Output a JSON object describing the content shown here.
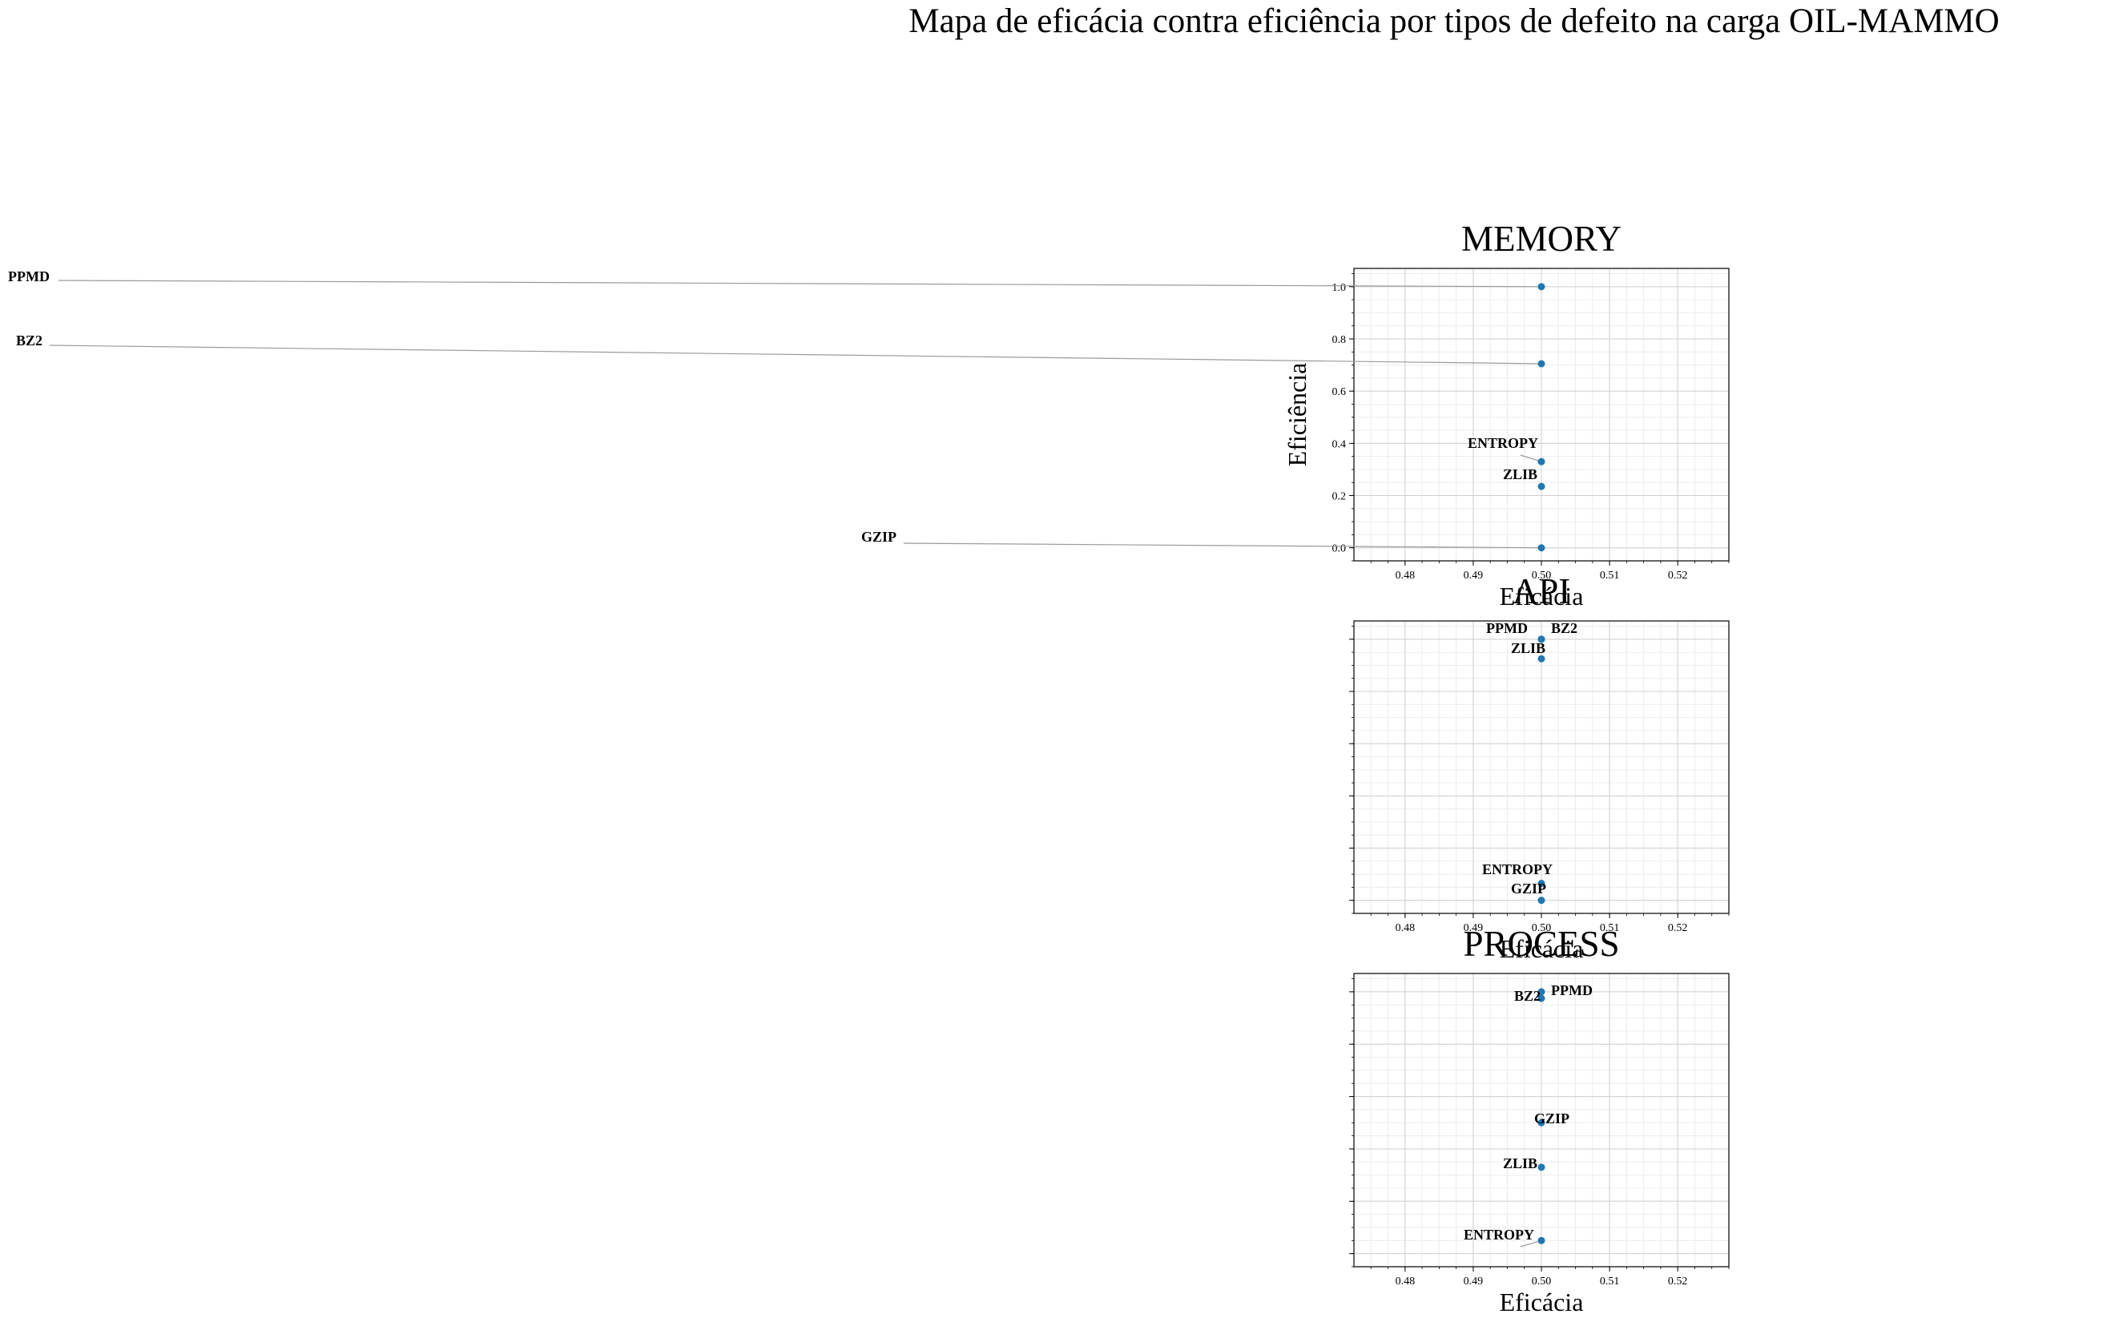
{
  "title": "Mapa de eficácia contra eficiência por tipos de defeito na carga OIL-MAMMO",
  "chart_data": [
    {
      "type": "scatter",
      "title": "MEMORY",
      "xlabel": "Eficácia",
      "ylabel": "Eficiência",
      "xlim": [
        0.4725,
        0.5275
      ],
      "ylim": [
        -0.05,
        1.07
      ],
      "xticks": [
        "0.48",
        "0.49",
        "0.50",
        "0.51",
        "0.52"
      ],
      "yticks": [
        "0.0",
        "0.2",
        "0.4",
        "0.6",
        "0.8",
        "1.0"
      ],
      "grid": true,
      "points": [
        {
          "label": "PPMD",
          "x": 0.5,
          "y": 1.0
        },
        {
          "label": "BZ2",
          "x": 0.5,
          "y": 0.705
        },
        {
          "label": "ENTROPY",
          "x": 0.5,
          "y": 0.33
        },
        {
          "label": "ZLIB",
          "x": 0.5,
          "y": 0.235
        },
        {
          "label": "GZIP",
          "x": 0.5,
          "y": 0.0
        }
      ]
    },
    {
      "type": "scatter",
      "title": "API",
      "xlabel": "Eficácia",
      "ylabel": "",
      "xlim": [
        0.4725,
        0.5275
      ],
      "ylim": [
        -0.05,
        1.07
      ],
      "xticks": [
        "0.48",
        "0.49",
        "0.50",
        "0.51",
        "0.52"
      ],
      "yticks": [],
      "grid": true,
      "points": [
        {
          "label": "PPMD",
          "x": 0.5,
          "y": 1.0
        },
        {
          "label": "BZ2",
          "x": 0.5,
          "y": 1.0
        },
        {
          "label": "ZLIB",
          "x": 0.5,
          "y": 0.925
        },
        {
          "label": "ENTROPY",
          "x": 0.5,
          "y": 0.065
        },
        {
          "label": "GZIP",
          "x": 0.5,
          "y": 0.0
        }
      ]
    },
    {
      "type": "scatter",
      "title": "PROCESS",
      "xlabel": "Eficácia",
      "ylabel": "",
      "xlim": [
        0.4725,
        0.5275
      ],
      "ylim": [
        -0.05,
        1.07
      ],
      "xticks": [
        "0.48",
        "0.49",
        "0.50",
        "0.51",
        "0.52"
      ],
      "yticks": [],
      "grid": true,
      "points": [
        {
          "label": "PPMD",
          "x": 0.5,
          "y": 1.0
        },
        {
          "label": "BZ2",
          "x": 0.5,
          "y": 0.975
        },
        {
          "label": "GZIP",
          "x": 0.5,
          "y": 0.5
        },
        {
          "label": "ZLIB",
          "x": 0.5,
          "y": 0.33
        },
        {
          "label": "ENTROPY",
          "x": 0.5,
          "y": 0.05
        }
      ]
    }
  ],
  "colors": {
    "marker": "#1f77b4",
    "leader": "#9a9a9a",
    "grid_major": "#cfcfcf",
    "grid_minor": "#ececec"
  }
}
